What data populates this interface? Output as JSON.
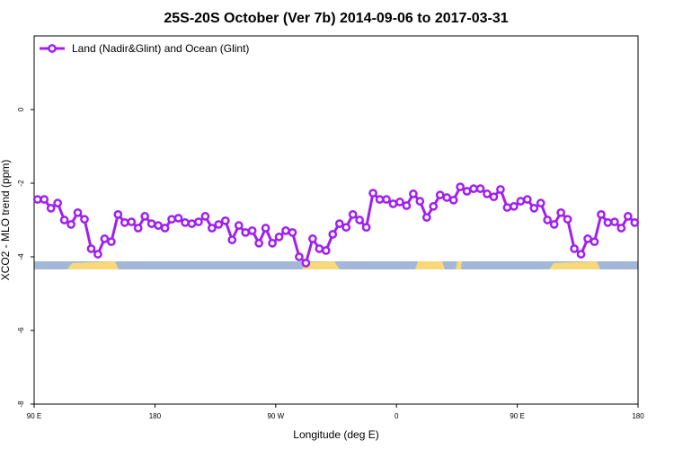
{
  "chart_data": {
    "type": "line",
    "title": "25S-20S October (Ver 7b)   2014-09-06 to 2017-03-31",
    "x_label": "Longitude (deg E)",
    "y_label": "XCO2 - MLO trend (ppm)",
    "xlim": [
      90,
      540
    ],
    "ylim": [
      -8,
      2
    ],
    "xticks": [
      {
        "value": 90,
        "label": "90 E"
      },
      180,
      {
        "value": 270,
        "label": "90 W"
      },
      {
        "value": 360,
        "label": "0"
      },
      {
        "value": 450,
        "label": "90 E"
      },
      {
        "value": 540,
        "label": "180"
      }
    ],
    "yticks": [
      -8,
      -6,
      -4,
      -2,
      0
    ],
    "legend": "top-left",
    "x": [
      92.5,
      97.5,
      102.5,
      107.5,
      112.5,
      117.5,
      122.5,
      127.5,
      132.5,
      137.5,
      142.5,
      147.5,
      152.5,
      157.5,
      162.5,
      167.5,
      172.5,
      177.5,
      182.5,
      187.5,
      192.5,
      197.5,
      202.5,
      207.5,
      212.5,
      217.5,
      222.5,
      227.5,
      232.5,
      237.5,
      242.5,
      247.5,
      252.5,
      257.5,
      262.5,
      267.5,
      272.5,
      277.5,
      282.5,
      287.5,
      292.5,
      297.5,
      302.5,
      307.5,
      312.5,
      317.5,
      322.5,
      327.5,
      332.5,
      337.5,
      342.5,
      347.5,
      352.5,
      357.5,
      362.5,
      367.5,
      372.5,
      377.5,
      382.5,
      387.5,
      392.5,
      397.5,
      402.5,
      407.5,
      412.5,
      417.5,
      422.5,
      427.5,
      432.5,
      437.5,
      442.5,
      447.5,
      452.5,
      457.5,
      462.5,
      467.5,
      472.5,
      477.5,
      482.5,
      487.5,
      492.5,
      497.5,
      502.5,
      507.5,
      512.5,
      517.5,
      522.5,
      527.5,
      532.5,
      537.5
    ],
    "series": [
      {
        "name": "Land (Nadir&Glint) and Ocean (Glint)",
        "color": "#a020f0",
        "values": [
          -2.44,
          -2.44,
          -2.68,
          -2.54,
          -3.0,
          -3.12,
          -2.8,
          -2.98,
          -3.78,
          -3.93,
          -3.51,
          -3.59,
          -2.85,
          -3.07,
          -3.05,
          -3.22,
          -2.9,
          -3.1,
          -3.15,
          -3.22,
          -2.98,
          -2.95,
          -3.07,
          -3.1,
          -3.05,
          -2.9,
          -3.22,
          -3.12,
          -3.02,
          -3.54,
          -3.15,
          -3.34,
          -3.29,
          -3.63,
          -3.22,
          -3.63,
          -3.46,
          -3.29,
          -3.34,
          -4.0,
          -4.17,
          -3.51,
          -3.78,
          -3.83,
          -3.39,
          -3.1,
          -3.2,
          -2.85,
          -3.0,
          -3.2,
          -2.27,
          -2.44,
          -2.44,
          -2.56,
          -2.51,
          -2.61,
          -2.29,
          -2.49,
          -2.93,
          -2.63,
          -2.32,
          -2.39,
          -2.46,
          -2.1,
          -2.22,
          -2.15,
          -2.15,
          -2.29,
          -2.37,
          -2.17,
          -2.66,
          -2.63,
          -2.49,
          -2.44,
          -2.68,
          -2.54,
          -3.0,
          -3.12,
          -2.8,
          -2.98,
          -3.78,
          -3.93,
          -3.51,
          -3.59,
          -2.85,
          -3.07,
          -3.05,
          -3.22,
          -2.9,
          -3.07
        ]
      }
    ]
  }
}
